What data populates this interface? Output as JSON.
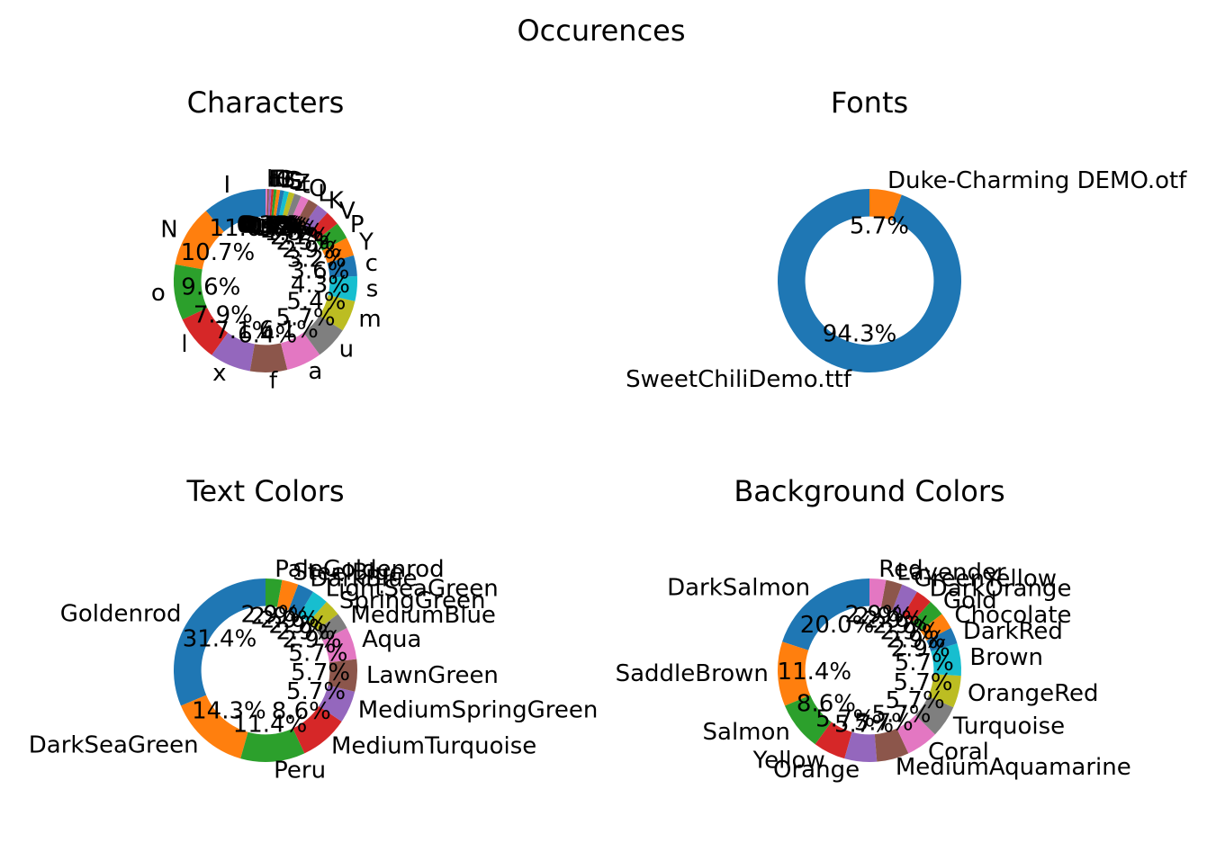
{
  "title": "Occurences",
  "palette": [
    "#1f77b4",
    "#ff7f0e",
    "#2ca02c",
    "#d62728",
    "#9467bd",
    "#8c564b",
    "#e377c2",
    "#7f7f7f",
    "#bcbd22",
    "#17becf"
  ],
  "chart_data": [
    {
      "type": "pie",
      "title": "Characters",
      "donut": true,
      "labels": [
        "I",
        "N",
        "o",
        "l",
        "x",
        "f",
        "a",
        "u",
        "m",
        "s",
        "c",
        "Y",
        "P",
        "V",
        "K",
        "L",
        "O",
        "t",
        "Z",
        "S",
        "G",
        "B",
        "C",
        "D",
        "E",
        "F",
        "b"
      ],
      "values": [
        11.0,
        10.7,
        9.6,
        7.9,
        7.1,
        6.4,
        6.1,
        5.7,
        5.4,
        4.3,
        3.6,
        3.2,
        2.9,
        2.5,
        2.1,
        1.8,
        1.4,
        1.2,
        1.0,
        0.8,
        0.7,
        0.6,
        0.5,
        0.4,
        0.4,
        0.3,
        0.3
      ],
      "percent_labels": [
        "11.0%",
        "10.7%",
        "9.6%",
        "7.9%",
        "7.1%",
        "6.4%",
        "6.1%",
        "5.7%",
        "5.4%",
        "4.3%",
        "3.6%",
        "3.2%",
        "2.9%",
        "2.5%",
        "2.1%",
        "1.8%",
        "1.4%",
        "1.2%",
        "1.0%",
        "0.8%",
        "0.7%",
        "0.6%",
        "0.5%",
        "0.4%",
        "0.4%",
        "0.3%",
        "0.3%"
      ]
    },
    {
      "type": "pie",
      "title": "Fonts",
      "donut": true,
      "labels": [
        "SweetChiliDemo.ttf",
        "Duke-Charming DEMO.otf"
      ],
      "values": [
        94.3,
        5.7
      ],
      "percent_labels": [
        "94.3%",
        "5.7%"
      ]
    },
    {
      "type": "pie",
      "title": "Text Colors",
      "donut": true,
      "labels": [
        "Goldenrod",
        "DarkSeaGreen",
        "Peru",
        "MediumTurquoise",
        "MediumSpringGreen",
        "LawnGreen",
        "Aqua",
        "MediumBlue",
        "SpringGreen",
        "LightSeaGreen",
        "DarkBlue",
        "SteelBlue",
        "PaleGoldenrod"
      ],
      "values": [
        31.4,
        14.3,
        11.4,
        8.6,
        5.7,
        5.7,
        5.7,
        2.9,
        2.9,
        2.9,
        2.9,
        2.9,
        2.9
      ],
      "percent_labels": [
        "31.4%",
        "14.3%",
        "11.4%",
        "8.6%",
        "5.7%",
        "5.7%",
        "5.7%",
        "2.9%",
        "2.9%",
        "2.9%",
        "2.9%",
        "2.9%",
        "2.9%"
      ]
    },
    {
      "type": "pie",
      "title": "Background Colors",
      "donut": true,
      "labels": [
        "DarkSalmon",
        "SaddleBrown",
        "Salmon",
        "Yellow",
        "Orange",
        "MediumAquamarine",
        "Coral",
        "Turquoise",
        "OrangeRed",
        "Brown",
        "DarkRed",
        "Chocolate",
        "Gold",
        "DarkOrange",
        "GreenYellow",
        "Lavender",
        "Red"
      ],
      "values": [
        20.0,
        11.4,
        8.6,
        5.7,
        5.7,
        5.7,
        5.7,
        5.7,
        5.7,
        5.7,
        2.9,
        2.9,
        2.9,
        2.9,
        2.9,
        2.9,
        2.9
      ],
      "percent_labels": [
        "20.0%",
        "11.4%",
        "8.6%",
        "5.7%",
        "5.7%",
        "5.7%",
        "5.7%",
        "5.7%",
        "5.7%",
        "5.7%",
        "2.9%",
        "2.9%",
        "2.9%",
        "2.9%",
        "2.9%",
        "2.9%",
        "2.9%"
      ]
    }
  ]
}
